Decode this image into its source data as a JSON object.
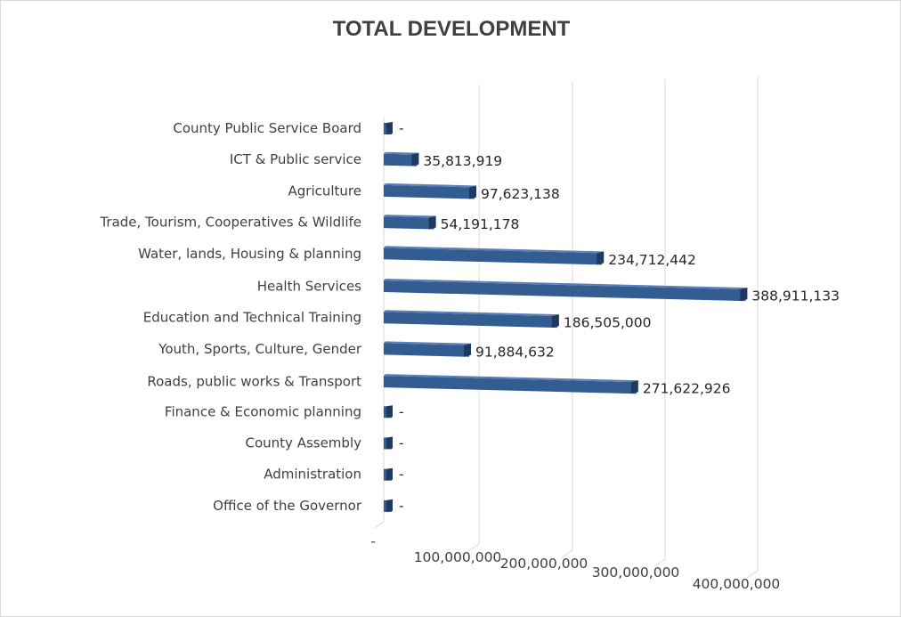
{
  "chart_data": {
    "type": "bar",
    "orientation": "horizontal",
    "title": "TOTAL DEVELOPMENT",
    "xlabel": "",
    "ylabel": "",
    "xlim": [
      0,
      400000000
    ],
    "grid": true,
    "legend": "none",
    "ticks": [
      {
        "value": 0,
        "label": "-"
      },
      {
        "value": 100000000,
        "label": "100,000,000"
      },
      {
        "value": 200000000,
        "label": "200,000,000"
      },
      {
        "value": 300000000,
        "label": "300,000,000"
      },
      {
        "value": 400000000,
        "label": "400,000,000"
      }
    ],
    "categories": [
      "County Public Service Board",
      "ICT & Public service",
      "Agriculture",
      "Trade, Tourism, Cooperatives & Wildlife",
      "Water, lands, Housing & planning",
      "Health Services",
      "Education and Technical Training",
      "Youth, Sports, Culture, Gender",
      "Roads, public works & Transport",
      "Finance & Economic planning",
      "County Assembly",
      "Administration",
      "Office of the Governor"
    ],
    "values": [
      0,
      35813919,
      97623138,
      54191178,
      234712442,
      388911133,
      186505000,
      91884632,
      271622926,
      0,
      0,
      0,
      0
    ],
    "value_labels": [
      "-",
      "35,813,919",
      "97,623,138",
      "54,191,178",
      "234,712,442",
      "388,911,133",
      "186,505,000",
      "91,884,632",
      "271,622,926",
      "-",
      "-",
      "-",
      "-"
    ],
    "colors": {
      "bar_front": "#335C91",
      "bar_top": "#5A7FB5",
      "bar_end": "#1E3A63",
      "grid": "#d9d9d9",
      "text": "#404040"
    }
  }
}
